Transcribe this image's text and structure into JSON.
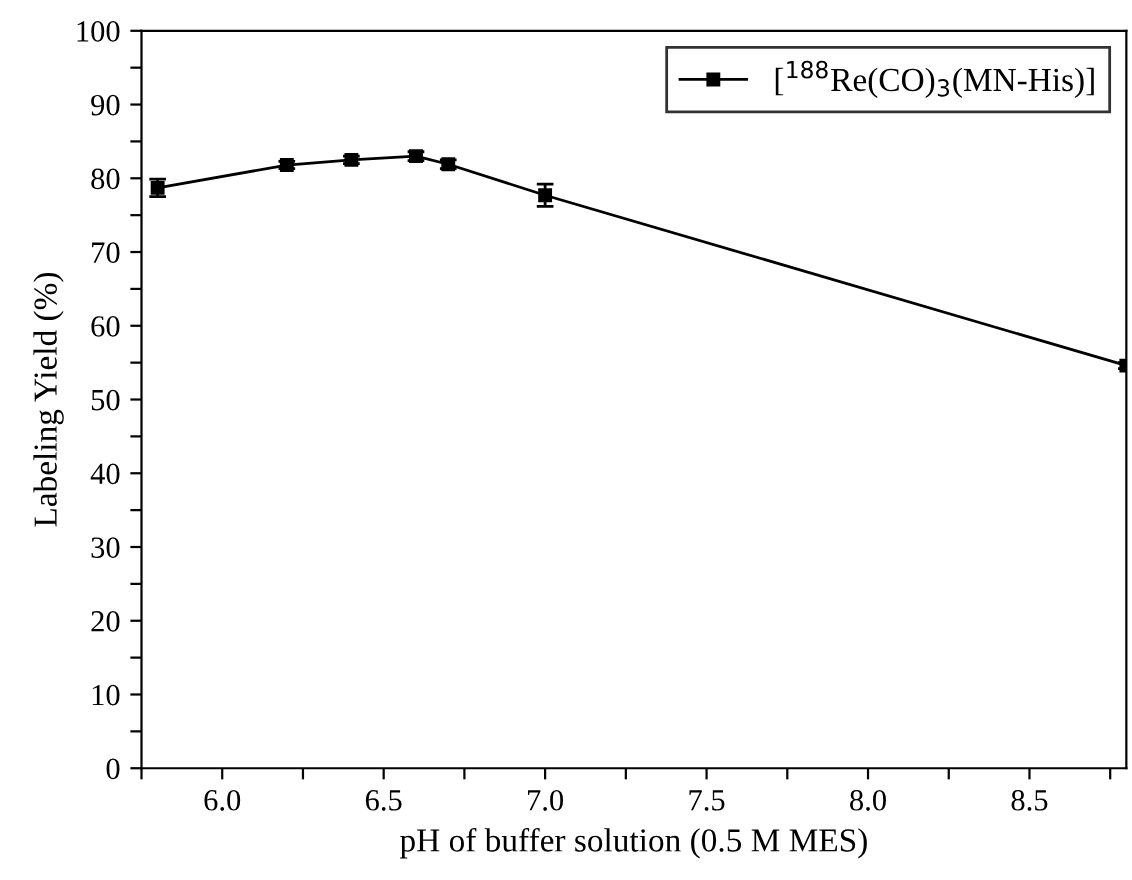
{
  "chart_data": {
    "type": "line",
    "xlabel": "pH of buffer solution (0.5 M MES)",
    "ylabel": "Labeling Yield (%)",
    "x": [
      5.8,
      6.2,
      6.4,
      6.6,
      6.7,
      7.0,
      8.8
    ],
    "series": [
      {
        "name": "[$^{188}$Re(CO)$_{3}$(MN-His)]",
        "color": "#000000",
        "values": [
          78.7,
          81.8,
          82.5,
          83.0,
          81.9,
          77.7,
          54.6
        ],
        "errors": [
          1.2,
          0.5,
          0.5,
          0.6,
          0.6,
          1.5,
          0.4
        ]
      }
    ],
    "xlim": [
      5.75,
      8.8
    ],
    "xticks": [
      {
        "value": 5.75,
        "label": null
      },
      {
        "value": 6.0,
        "label": "6.0"
      },
      {
        "value": 6.25,
        "label": null
      },
      6.5,
      {
        "value": 6.75,
        "label": null
      },
      {
        "value": 7.0,
        "label": "7.0"
      },
      {
        "value": 7.25,
        "label": null
      },
      7.5,
      {
        "value": 7.75,
        "label": null
      },
      {
        "value": 8.0,
        "label": "8.0"
      },
      {
        "value": 8.25,
        "label": null
      },
      8.5,
      {
        "value": 8.75,
        "label": null
      }
    ],
    "ylim": [
      0,
      100
    ],
    "yticks": [
      0,
      {
        "value": 5,
        "label": null
      },
      10,
      {
        "value": 15,
        "label": null
      },
      20,
      {
        "value": 25,
        "label": null
      },
      30,
      {
        "value": 35,
        "label": null
      },
      40,
      {
        "value": 45,
        "label": null
      },
      50,
      {
        "value": 55,
        "label": null
      },
      60,
      {
        "value": 65,
        "label": null
      },
      70,
      {
        "value": 75,
        "label": null
      },
      80,
      {
        "value": 85,
        "label": null
      },
      90,
      {
        "value": 95,
        "label": null
      },
      100
    ],
    "marker": "square",
    "line_style": "solid",
    "grid": false,
    "legend": "top right"
  }
}
